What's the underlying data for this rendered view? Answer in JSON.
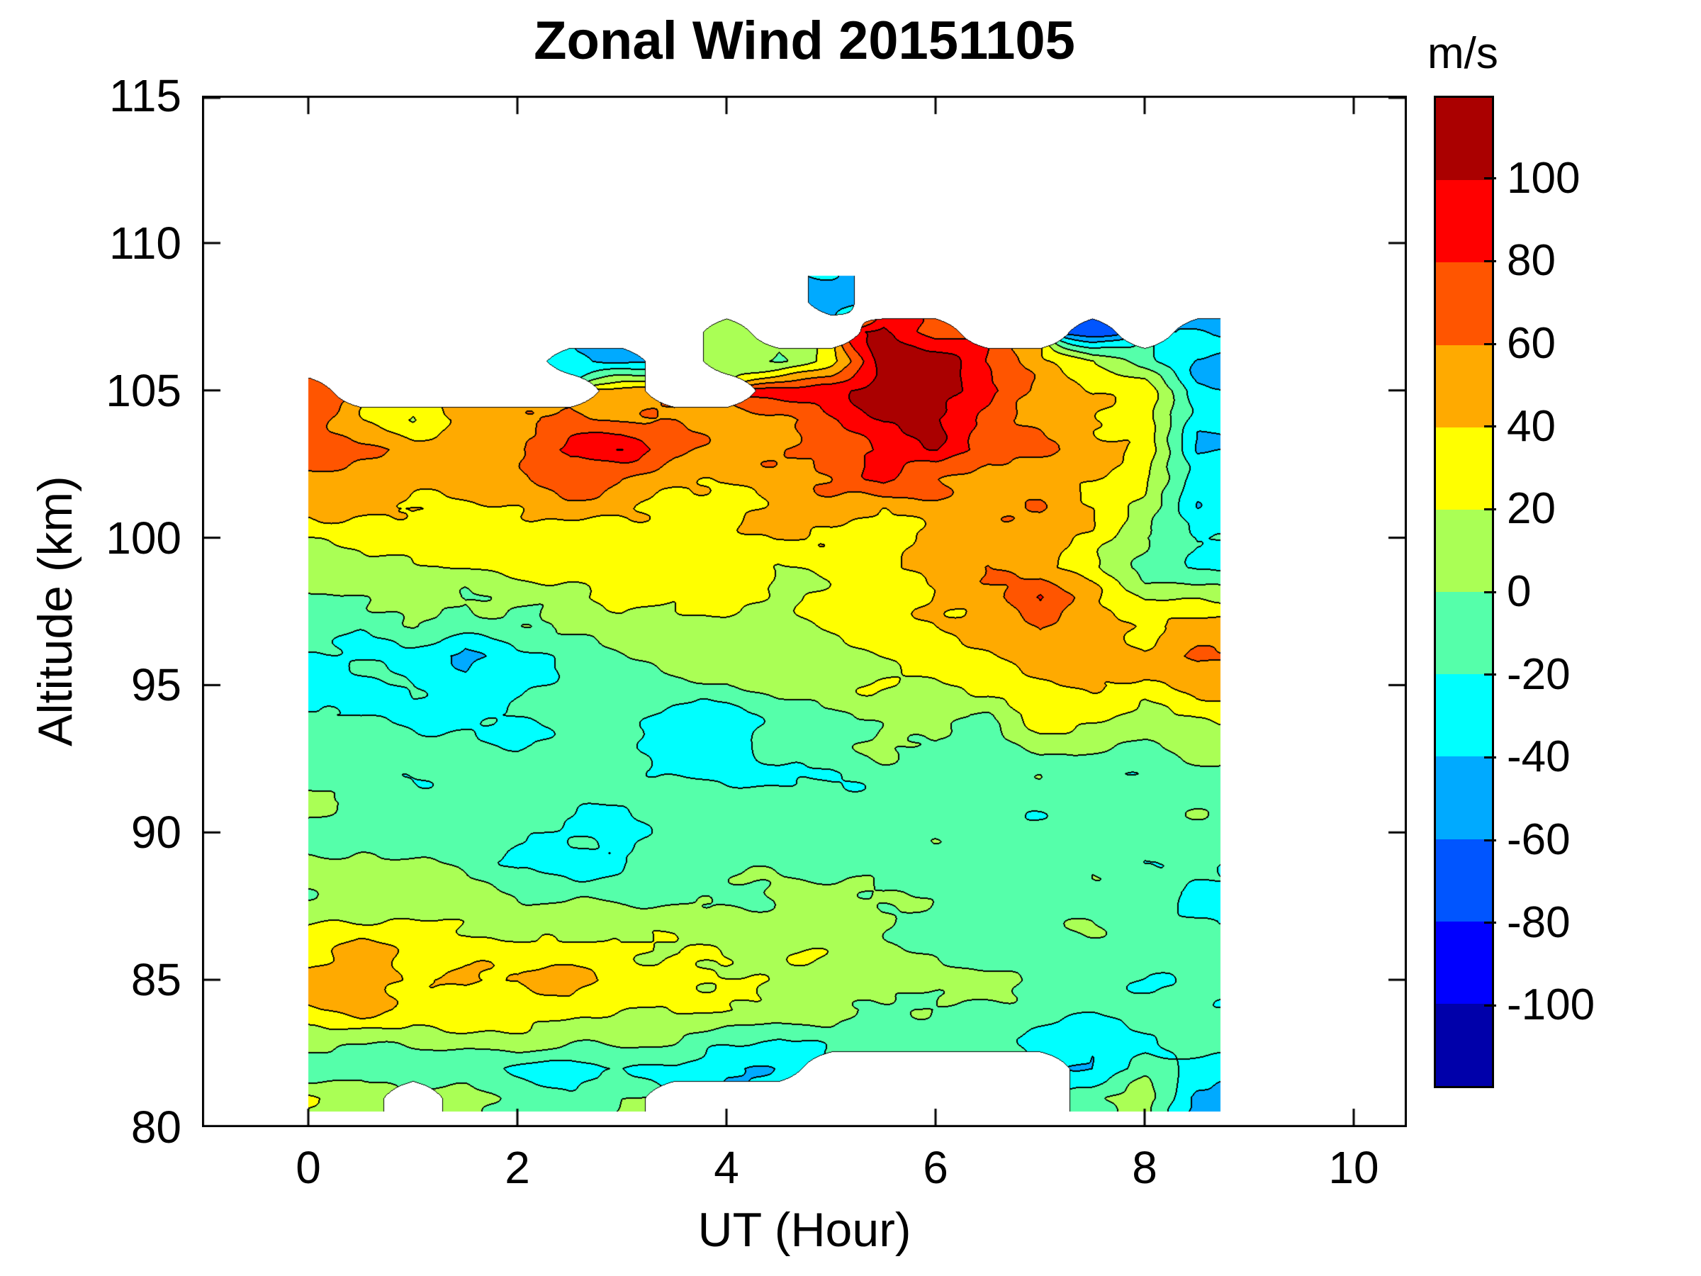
{
  "figure": {
    "title": "Zonal Wind 20151105",
    "xlabel": "UT (Hour)",
    "ylabel": "Altitude (km)",
    "colorbar_unit": "m/s"
  },
  "axes": {
    "x_ticks": [
      0,
      2,
      4,
      6,
      8,
      10
    ],
    "y_ticks": [
      80,
      85,
      90,
      95,
      100,
      105,
      110,
      115
    ],
    "x_range_hours": [
      -1.0,
      10.5
    ],
    "y_range_km": [
      80,
      115
    ],
    "frame_color": "#000000",
    "background_color": "#ffffff"
  },
  "colorbar": {
    "unit": "m/s",
    "tick_labels": [
      "100",
      "80",
      "60",
      "40",
      "20",
      "0",
      "-20",
      "-40",
      "-60",
      "-80",
      "-100"
    ],
    "level_step_mps": 20,
    "level_min_mps": -120,
    "level_max_mps": 120,
    "colors_top_to_bottom": [
      "#AA0000",
      "#FF0000",
      "#FF5500",
      "#FFAA00",
      "#FFFF00",
      "#AAFF55",
      "#55FFAA",
      "#00FFFF",
      "#00AAFF",
      "#0055FF",
      "#0000FF",
      "#0000AA"
    ]
  },
  "chart_data": {
    "type": "heatmap",
    "subtype": "filled_contour",
    "title": "Zonal Wind 20151105",
    "xlabel": "UT (Hour)",
    "ylabel": "Altitude (km)",
    "value_unit": "m/s",
    "data_time_extent_hours": [
      0,
      8.7
    ],
    "data_altitude_extent_km": [
      80.5,
      108.9
    ],
    "missing_data_note": "null = no data (rendered white)",
    "x_hours": [
      0,
      0.5,
      1,
      1.5,
      2,
      2.5,
      3,
      3.5,
      4,
      4.5,
      5,
      5.5,
      6,
      6.5,
      7,
      7.5,
      8,
      8.5
    ],
    "altitudes_km": [
      108,
      107,
      106,
      105,
      104,
      103,
      102,
      101,
      100,
      99,
      98,
      97,
      96,
      95,
      94,
      93,
      92,
      91,
      90,
      89,
      88,
      87,
      86,
      85,
      84,
      83,
      82,
      81
    ],
    "values_mps": [
      [
        null,
        null,
        null,
        null,
        null,
        null,
        null,
        null,
        null,
        null,
        -45,
        null,
        null,
        null,
        null,
        null,
        null,
        null
      ],
      [
        null,
        null,
        null,
        null,
        null,
        null,
        null,
        null,
        10,
        null,
        null,
        105,
        70,
        null,
        null,
        -75,
        null,
        -45
      ],
      [
        null,
        null,
        null,
        null,
        null,
        -35,
        -45,
        null,
        5,
        0,
        35,
        110,
        110,
        75,
        50,
        25,
        -10,
        -45
      ],
      [
        75,
        null,
        null,
        null,
        null,
        null,
        50,
        null,
        null,
        90,
        95,
        115,
        115,
        90,
        55,
        35,
        30,
        -35
      ],
      [
        80,
        45,
        15,
        45,
        55,
        65,
        55,
        60,
        55,
        55,
        75,
        95,
        100,
        75,
        55,
        40,
        30,
        -30
      ],
      [
        70,
        60,
        55,
        60,
        65,
        85,
        95,
        60,
        55,
        60,
        65,
        85,
        105,
        70,
        60,
        45,
        35,
        -35
      ],
      [
        55,
        50,
        45,
        50,
        55,
        75,
        60,
        50,
        45,
        50,
        55,
        85,
        65,
        55,
        50,
        40,
        25,
        -30
      ],
      [
        40,
        45,
        45,
        40,
        40,
        45,
        40,
        35,
        35,
        45,
        55,
        45,
        55,
        50,
        55,
        40,
        20,
        -35
      ],
      [
        15,
        25,
        30,
        30,
        30,
        30,
        35,
        30,
        30,
        35,
        35,
        30,
        50,
        55,
        55,
        35,
        0,
        -25
      ],
      [
        10,
        15,
        25,
        20,
        25,
        30,
        35,
        25,
        30,
        20,
        30,
        35,
        45,
        55,
        50,
        30,
        -5,
        -25
      ],
      [
        -5,
        0,
        5,
        -5,
        5,
        15,
        40,
        20,
        25,
        15,
        30,
        30,
        40,
        50,
        85,
        45,
        10,
        15
      ],
      [
        -10,
        -10,
        0,
        -15,
        -5,
        5,
        10,
        15,
        15,
        10,
        25,
        25,
        35,
        45,
        70,
        50,
        35,
        50
      ],
      [
        -20,
        -25,
        -30,
        -45,
        -20,
        -10,
        -5,
        5,
        10,
        10,
        15,
        20,
        30,
        40,
        50,
        45,
        40,
        70
      ],
      [
        -25,
        -25,
        -25,
        -40,
        -25,
        -15,
        -10,
        0,
        5,
        10,
        10,
        15,
        20,
        30,
        40,
        40,
        35,
        50
      ],
      [
        -20,
        -25,
        -20,
        -20,
        -15,
        -15,
        -15,
        -25,
        -25,
        -10,
        -5,
        10,
        10,
        -5,
        25,
        25,
        20,
        30
      ],
      [
        -15,
        -15,
        -15,
        -15,
        -25,
        -15,
        -10,
        -30,
        -35,
        -15,
        -10,
        5,
        5,
        -10,
        10,
        5,
        -5,
        10
      ],
      [
        -10,
        -10,
        -12,
        -10,
        -20,
        -12,
        -10,
        -20,
        -30,
        -25,
        -20,
        -5,
        -8,
        -12,
        -5,
        -10,
        -15,
        -10
      ],
      [
        5,
        -5,
        -8,
        -10,
        -12,
        -10,
        -15,
        -10,
        -12,
        -10,
        -10,
        -8,
        -10,
        -20,
        -12,
        -8,
        -12,
        -8
      ],
      [
        -5,
        -8,
        -10,
        -8,
        -20,
        -22,
        -25,
        -10,
        -10,
        -8,
        -10,
        -8,
        -10,
        -15,
        -10,
        -8,
        -10,
        -10
      ],
      [
        0,
        5,
        0,
        -5,
        -22,
        -20,
        -25,
        -8,
        -5,
        -5,
        -8,
        -5,
        -8,
        -10,
        -15,
        -10,
        -22,
        -15
      ],
      [
        8,
        10,
        5,
        8,
        -5,
        -8,
        -10,
        -8,
        0,
        5,
        0,
        -5,
        -5,
        -8,
        -10,
        -5,
        -10,
        -25
      ],
      [
        15,
        18,
        20,
        25,
        15,
        10,
        5,
        10,
        10,
        10,
        5,
        0,
        -5,
        -5,
        -8,
        -5,
        -8,
        -15
      ],
      [
        30,
        45,
        30,
        30,
        28,
        25,
        25,
        25,
        20,
        15,
        10,
        5,
        0,
        -5,
        -8,
        -10,
        -12,
        -15
      ],
      [
        50,
        55,
        40,
        50,
        35,
        48,
        30,
        30,
        25,
        15,
        10,
        8,
        5,
        0,
        -5,
        -10,
        -12,
        -18
      ],
      [
        35,
        45,
        35,
        38,
        30,
        30,
        25,
        22,
        15,
        10,
        8,
        5,
        0,
        -5,
        -10,
        -15,
        -15,
        -20
      ],
      [
        10,
        12,
        10,
        10,
        8,
        5,
        8,
        5,
        -15,
        -20,
        -10,
        -15,
        -10,
        -12,
        -20,
        -35,
        -20,
        -15
      ],
      [
        -15,
        -12,
        -15,
        -18,
        -20,
        -28,
        -20,
        -30,
        -45,
        -35,
        null,
        null,
        null,
        null,
        null,
        -40,
        -15,
        -25
      ],
      [
        25,
        15,
        null,
        5,
        -5,
        -10,
        0,
        null,
        null,
        null,
        null,
        null,
        null,
        null,
        null,
        -10,
        10,
        -50
      ]
    ],
    "legend_position": "right colorbar",
    "grid": "off"
  }
}
